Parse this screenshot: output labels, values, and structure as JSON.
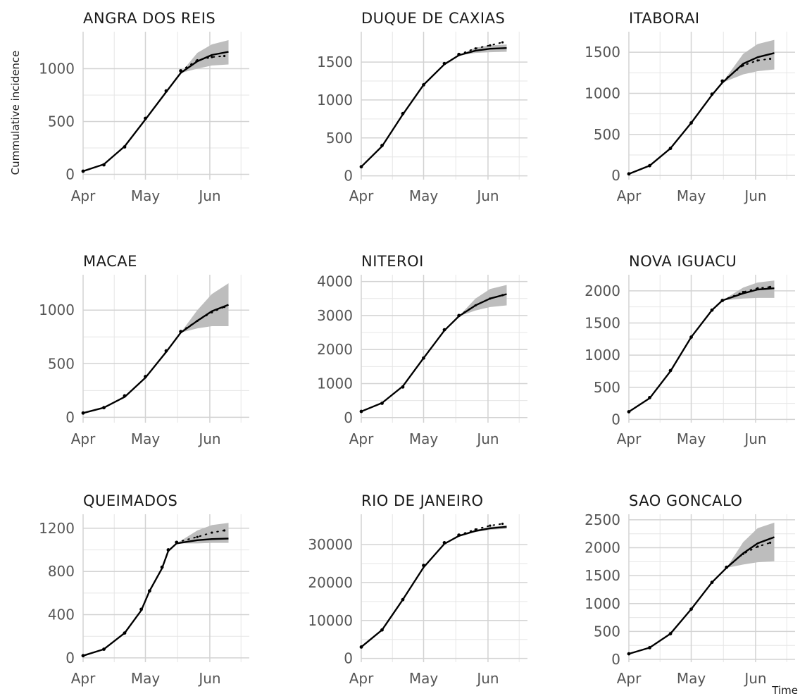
{
  "ylabel": "Cummulative incidence",
  "xlabel": "Time",
  "colors": {
    "observed": "#000000",
    "fit": "#000000",
    "band": "#bdbdbd",
    "grid": "#d3d3d3"
  },
  "chart_data": [
    {
      "type": "line",
      "title": "ANGRA DOS REIS",
      "x_ticks": [
        "Apr",
        "May",
        "Jun"
      ],
      "x_tick_days": [
        0,
        30,
        61
      ],
      "xlim": [
        0,
        80
      ],
      "y_ticks": [
        "0",
        "500",
        "1000"
      ],
      "y_tick_values": [
        0,
        500,
        1000
      ],
      "ylim": [
        -50,
        1350
      ],
      "forecast_start_day": 47,
      "observed": {
        "x": [
          0,
          10,
          20,
          30,
          40,
          47,
          55,
          62,
          68
        ],
        "y": [
          30,
          90,
          260,
          530,
          790,
          980,
          1080,
          1110,
          1120
        ]
      },
      "fit": {
        "x": [
          0,
          10,
          20,
          30,
          40,
          47,
          55,
          62,
          70
        ],
        "y": [
          30,
          95,
          265,
          520,
          780,
          960,
          1070,
          1130,
          1160
        ]
      },
      "band": {
        "x": [
          47,
          55,
          62,
          70
        ],
        "lower": [
          960,
          1000,
          1030,
          1040
        ],
        "upper": [
          960,
          1150,
          1230,
          1270
        ]
      }
    },
    {
      "type": "line",
      "title": "DUQUE DE CAXIAS",
      "x_ticks": [
        "Apr",
        "May",
        "Jun"
      ],
      "x_tick_days": [
        0,
        30,
        61
      ],
      "xlim": [
        0,
        80
      ],
      "y_ticks": [
        "0",
        "500",
        "1000",
        "1500"
      ],
      "y_tick_values": [
        0,
        500,
        1000,
        1500
      ],
      "ylim": [
        -50,
        1900
      ],
      "forecast_start_day": 47,
      "observed": {
        "x": [
          0,
          10,
          20,
          30,
          40,
          47,
          55,
          62,
          68
        ],
        "y": [
          120,
          400,
          820,
          1200,
          1480,
          1600,
          1680,
          1720,
          1760
        ]
      },
      "fit": {
        "x": [
          0,
          10,
          20,
          30,
          40,
          47,
          55,
          62,
          70
        ],
        "y": [
          120,
          390,
          810,
          1200,
          1470,
          1590,
          1650,
          1675,
          1685
        ]
      },
      "band": {
        "x": [
          47,
          55,
          62,
          70
        ],
        "lower": [
          1590,
          1620,
          1630,
          1635
        ],
        "upper": [
          1590,
          1690,
          1720,
          1730
        ]
      }
    },
    {
      "type": "line",
      "title": "ITABORAI",
      "x_ticks": [
        "Apr",
        "May",
        "Jun"
      ],
      "x_tick_days": [
        0,
        30,
        61
      ],
      "xlim": [
        0,
        80
      ],
      "y_ticks": [
        "0",
        "500",
        "1000",
        "1500"
      ],
      "y_tick_values": [
        0,
        500,
        1000,
        1500
      ],
      "ylim": [
        -50,
        1750
      ],
      "forecast_start_day": 45,
      "observed": {
        "x": [
          0,
          10,
          20,
          30,
          40,
          45,
          55,
          62,
          68
        ],
        "y": [
          20,
          120,
          330,
          640,
          990,
          1150,
          1340,
          1400,
          1420
        ]
      },
      "fit": {
        "x": [
          0,
          10,
          20,
          30,
          40,
          45,
          55,
          62,
          70
        ],
        "y": [
          20,
          120,
          330,
          640,
          980,
          1130,
          1360,
          1440,
          1490
        ]
      },
      "band": {
        "x": [
          45,
          55,
          62,
          70
        ],
        "lower": [
          1130,
          1230,
          1270,
          1290
        ],
        "upper": [
          1130,
          1480,
          1600,
          1650
        ]
      }
    },
    {
      "type": "line",
      "title": "MACAE",
      "x_ticks": [
        "Apr",
        "May",
        "Jun"
      ],
      "x_tick_days": [
        0,
        30,
        61
      ],
      "xlim": [
        0,
        80
      ],
      "y_ticks": [
        "0",
        "500",
        "1000"
      ],
      "y_tick_values": [
        0,
        500,
        1000
      ],
      "ylim": [
        -50,
        1330
      ],
      "forecast_start_day": 47,
      "observed": {
        "x": [
          0,
          10,
          20,
          30,
          40,
          47,
          55,
          62,
          68
        ],
        "y": [
          40,
          90,
          200,
          380,
          620,
          800,
          900,
          980,
          1030
        ]
      },
      "fit": {
        "x": [
          0,
          10,
          20,
          30,
          40,
          47,
          55,
          62,
          70
        ],
        "y": [
          40,
          90,
          190,
          370,
          610,
          790,
          900,
          990,
          1050
        ]
      },
      "band": {
        "x": [
          47,
          55,
          62,
          70
        ],
        "lower": [
          790,
          830,
          850,
          850
        ],
        "upper": [
          790,
          1000,
          1150,
          1250
        ]
      }
    },
    {
      "type": "line",
      "title": "NITEROI",
      "x_ticks": [
        "Apr",
        "May",
        "Jun"
      ],
      "x_tick_days": [
        0,
        30,
        61
      ],
      "xlim": [
        0,
        80
      ],
      "y_ticks": [
        "0",
        "1000",
        "2000",
        "3000",
        "4000"
      ],
      "y_tick_values": [
        0,
        1000,
        2000,
        3000,
        4000
      ],
      "ylim": [
        -150,
        4200
      ],
      "forecast_start_day": 47,
      "observed": {
        "x": [
          0,
          10,
          20,
          30,
          40,
          47,
          55,
          62,
          68
        ],
        "y": [
          180,
          420,
          900,
          1750,
          2580,
          3000,
          3300,
          3500,
          3600
        ]
      },
      "fit": {
        "x": [
          0,
          10,
          20,
          30,
          40,
          47,
          55,
          62,
          70
        ],
        "y": [
          180,
          430,
          920,
          1750,
          2560,
          2980,
          3300,
          3500,
          3630
        ]
      },
      "band": {
        "x": [
          47,
          55,
          62,
          70
        ],
        "lower": [
          2980,
          3150,
          3250,
          3300
        ],
        "upper": [
          2980,
          3500,
          3780,
          3900
        ]
      }
    },
    {
      "type": "line",
      "title": "NOVA IGUACU",
      "x_ticks": [
        "Apr",
        "May",
        "Jun"
      ],
      "x_tick_days": [
        0,
        30,
        61
      ],
      "xlim": [
        0,
        80
      ],
      "y_ticks": [
        "0",
        "500",
        "1000",
        "1500",
        "2000"
      ],
      "y_tick_values": [
        0,
        500,
        1000,
        1500,
        2000
      ],
      "ylim": [
        -50,
        2250
      ],
      "forecast_start_day": 45,
      "observed": {
        "x": [
          0,
          10,
          20,
          30,
          40,
          45,
          55,
          62,
          68
        ],
        "y": [
          120,
          340,
          760,
          1280,
          1700,
          1850,
          1980,
          2040,
          2060
        ]
      },
      "fit": {
        "x": [
          0,
          10,
          20,
          30,
          40,
          45,
          55,
          62,
          70
        ],
        "y": [
          120,
          330,
          750,
          1280,
          1700,
          1850,
          1960,
          2020,
          2040
        ]
      },
      "band": {
        "x": [
          45,
          55,
          62,
          70
        ],
        "lower": [
          1850,
          1880,
          1890,
          1890
        ],
        "upper": [
          1850,
          2050,
          2130,
          2160
        ]
      }
    },
    {
      "type": "line",
      "title": "QUEIMADOS",
      "x_ticks": [
        "Apr",
        "May",
        "Jun"
      ],
      "x_tick_days": [
        0,
        30,
        61
      ],
      "xlim": [
        0,
        80
      ],
      "y_ticks": [
        "0",
        "400",
        "800",
        "1200"
      ],
      "y_tick_values": [
        0,
        400,
        800,
        1200
      ],
      "ylim": [
        -40,
        1330
      ],
      "forecast_start_day": 45,
      "observed": {
        "x": [
          0,
          10,
          20,
          28,
          32,
          38,
          41,
          45,
          55,
          62,
          68
        ],
        "y": [
          20,
          80,
          230,
          450,
          620,
          840,
          1000,
          1070,
          1120,
          1160,
          1180
        ]
      },
      "fit": {
        "x": [
          0,
          10,
          20,
          28,
          32,
          38,
          41,
          45,
          55,
          62,
          70
        ],
        "y": [
          20,
          80,
          230,
          440,
          620,
          830,
          990,
          1060,
          1090,
          1100,
          1105
        ]
      },
      "band": {
        "x": [
          45,
          55,
          62,
          70
        ],
        "lower": [
          1060,
          1060,
          1065,
          1065
        ],
        "upper": [
          1060,
          1180,
          1230,
          1250
        ]
      }
    },
    {
      "type": "line",
      "title": "RIO DE JANEIRO",
      "x_ticks": [
        "Apr",
        "May",
        "Jun"
      ],
      "x_tick_days": [
        0,
        30,
        61
      ],
      "xlim": [
        0,
        80
      ],
      "y_ticks": [
        "0",
        "10000",
        "20000",
        "30000"
      ],
      "y_tick_values": [
        0,
        10000,
        20000,
        30000
      ],
      "ylim": [
        -1000,
        38000
      ],
      "forecast_start_day": 47,
      "observed": {
        "x": [
          0,
          10,
          20,
          30,
          40,
          47,
          55,
          62,
          68
        ],
        "y": [
          3000,
          7500,
          15500,
          24500,
          30500,
          32500,
          34000,
          35000,
          35500
        ]
      },
      "fit": {
        "x": [
          0,
          10,
          20,
          30,
          40,
          47,
          55,
          62,
          70
        ],
        "y": [
          3000,
          7500,
          15500,
          24000,
          30200,
          32300,
          33600,
          34300,
          34700
        ]
      },
      "band": {
        "x": [
          47,
          55,
          62,
          70
        ],
        "lower": [
          32300,
          33300,
          33900,
          34200
        ],
        "upper": [
          32300,
          33900,
          34700,
          35100
        ]
      }
    },
    {
      "type": "line",
      "title": "SAO GONCALO",
      "x_ticks": [
        "Apr",
        "May",
        "Jun"
      ],
      "x_tick_days": [
        0,
        30,
        61
      ],
      "xlim": [
        0,
        80
      ],
      "y_ticks": [
        "0",
        "500",
        "1000",
        "1500",
        "2000",
        "2500"
      ],
      "y_tick_values": [
        0,
        500,
        1000,
        1500,
        2000,
        2500
      ],
      "ylim": [
        -50,
        2600
      ],
      "forecast_start_day": 47,
      "observed": {
        "x": [
          0,
          10,
          20,
          30,
          40,
          47,
          55,
          62,
          68
        ],
        "y": [
          100,
          210,
          460,
          900,
          1380,
          1650,
          1890,
          2020,
          2090
        ]
      },
      "fit": {
        "x": [
          0,
          10,
          20,
          30,
          40,
          47,
          55,
          62,
          70
        ],
        "y": [
          100,
          210,
          460,
          900,
          1380,
          1640,
          1900,
          2080,
          2190
        ]
      },
      "band": {
        "x": [
          47,
          55,
          62,
          70
        ],
        "lower": [
          1640,
          1700,
          1740,
          1760
        ],
        "upper": [
          1640,
          2100,
          2350,
          2450
        ]
      }
    }
  ]
}
